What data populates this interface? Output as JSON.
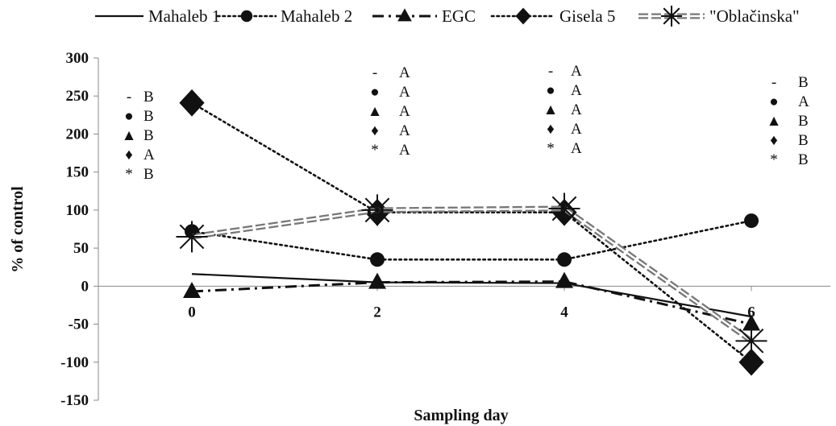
{
  "chart_data": {
    "type": "line",
    "title": "",
    "xlabel": "Sampling day",
    "ylabel": "% of control",
    "ylim": [
      -150,
      300
    ],
    "yticks": [
      -150,
      -100,
      -50,
      0,
      50,
      100,
      150,
      200,
      250,
      300
    ],
    "x": [
      0,
      2,
      4,
      6
    ],
    "x_tick_labels": [
      "0",
      "2",
      "4",
      "6"
    ],
    "grid": false,
    "legend_position": "top",
    "series": [
      {
        "name": "Mahaleb 1",
        "values": [
          16,
          5,
          4,
          -40
        ],
        "style": "solid",
        "marker": "none",
        "color": "#111111"
      },
      {
        "name": "Mahaleb 2",
        "values": [
          72,
          35,
          35,
          86
        ],
        "style": "dotted",
        "marker": "circle",
        "color": "#111111"
      },
      {
        "name": "EGC",
        "values": [
          -7,
          5,
          6,
          -50
        ],
        "style": "dashdot",
        "marker": "triangle",
        "color": "#111111"
      },
      {
        "name": "Gisela 5",
        "values": [
          241,
          97,
          97,
          -100
        ],
        "style": "dotted",
        "marker": "diamond",
        "color": "#111111"
      },
      {
        "name": "\"Oblačinska\"",
        "values": [
          65,
          100,
          102,
          -72
        ],
        "style": "double-dash",
        "marker": "asterisk",
        "color": "#777777"
      }
    ],
    "annotations": [
      {
        "x": 0,
        "letters": [
          {
            "marker": "-",
            "letter": "B"
          },
          {
            "marker": "●",
            "letter": "B"
          },
          {
            "marker": "▲",
            "letter": "B"
          },
          {
            "marker": "♦",
            "letter": "A"
          },
          {
            "marker": "*",
            "letter": "B"
          }
        ]
      },
      {
        "x": 2,
        "letters": [
          {
            "marker": "-",
            "letter": "A"
          },
          {
            "marker": "●",
            "letter": "A"
          },
          {
            "marker": "▲",
            "letter": "A"
          },
          {
            "marker": "♦",
            "letter": "A"
          },
          {
            "marker": "*",
            "letter": "A"
          }
        ]
      },
      {
        "x": 4,
        "letters": [
          {
            "marker": "-",
            "letter": "A"
          },
          {
            "marker": "●",
            "letter": "A"
          },
          {
            "marker": "▲",
            "letter": "A"
          },
          {
            "marker": "♦",
            "letter": "A"
          },
          {
            "marker": "*",
            "letter": "A"
          }
        ]
      },
      {
        "x": 6,
        "letters": [
          {
            "marker": "-",
            "letter": "B"
          },
          {
            "marker": "●",
            "letter": "A"
          },
          {
            "marker": "▲",
            "letter": "B"
          },
          {
            "marker": "♦",
            "letter": "B"
          },
          {
            "marker": "*",
            "letter": "B"
          }
        ]
      }
    ]
  }
}
